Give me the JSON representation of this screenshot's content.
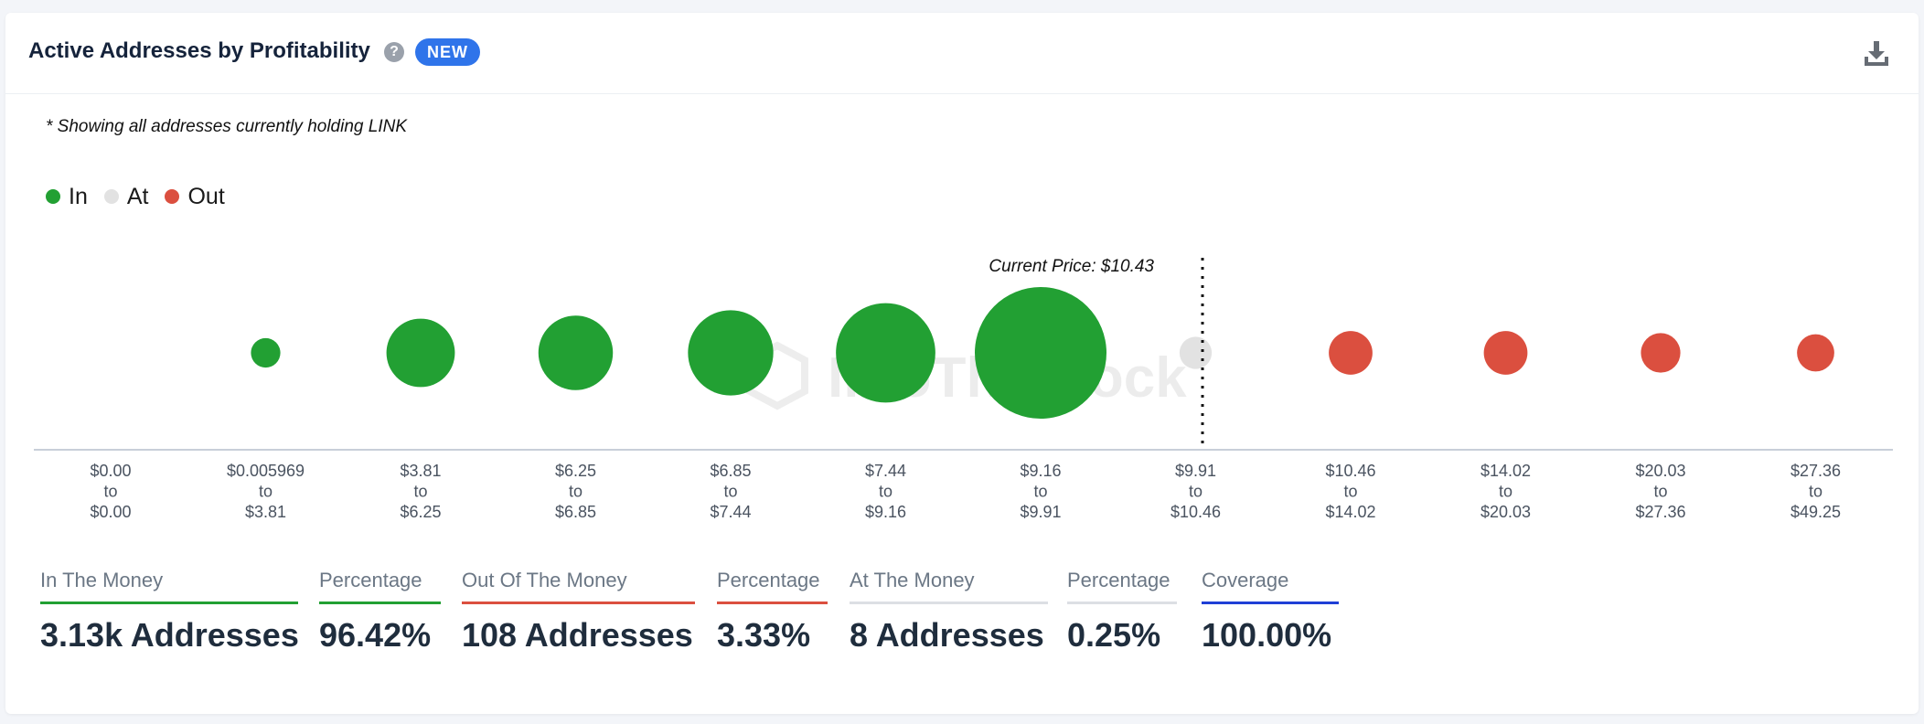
{
  "header": {
    "title": "Active Addresses by Profitability",
    "help_icon": "question-circle-icon",
    "badge": "NEW",
    "download_icon": "download-icon"
  },
  "note": "* Showing all addresses currently holding LINK",
  "watermark": "IntoTheBlock",
  "colors": {
    "in": "#22a033",
    "at": "#e2e2e2",
    "out": "#db4f3f",
    "coverage": "#1f3fd6",
    "badge": "#2f74ea"
  },
  "chart_data": {
    "type": "bubble",
    "legend": [
      {
        "key": "in",
        "label": "In",
        "color": "#22a033"
      },
      {
        "key": "at",
        "label": "At",
        "color": "#e2e2e2"
      },
      {
        "key": "out",
        "label": "Out",
        "color": "#db4f3f"
      }
    ],
    "current_price_label": "Current Price: $10.43",
    "current_price": 10.43,
    "buckets": [
      {
        "from": "$0.00",
        "to": "$0.00",
        "status": "in",
        "size": 0
      },
      {
        "from": "$0.005969",
        "to": "$3.81",
        "status": "in",
        "size": 0.05
      },
      {
        "from": "$3.81",
        "to": "$6.25",
        "status": "in",
        "size": 0.27
      },
      {
        "from": "$6.25",
        "to": "$6.85",
        "status": "in",
        "size": 0.32
      },
      {
        "from": "$6.85",
        "to": "$7.44",
        "status": "in",
        "size": 0.42
      },
      {
        "from": "$7.44",
        "to": "$9.16",
        "status": "in",
        "size": 0.57
      },
      {
        "from": "$9.16",
        "to": "$9.91",
        "status": "in",
        "size": 1.0
      },
      {
        "from": "$9.91",
        "to": "$10.46",
        "status": "at",
        "size": 0.06
      },
      {
        "from": "$10.46",
        "to": "$14.02",
        "status": "out",
        "size": 0.11
      },
      {
        "from": "$14.02",
        "to": "$20.03",
        "status": "out",
        "size": 0.11
      },
      {
        "from": "$20.03",
        "to": "$27.36",
        "status": "out",
        "size": 0.09
      },
      {
        "from": "$27.36",
        "to": "$49.25",
        "status": "out",
        "size": 0.08
      }
    ],
    "tick_connector": "to"
  },
  "stats": [
    {
      "label": "In The Money",
      "value": "3.13k Addresses",
      "color": "#22a033"
    },
    {
      "label": "Percentage",
      "value": "96.42%",
      "color": "#22a033"
    },
    {
      "label": "Out Of The Money",
      "value": "108 Addresses",
      "color": "#db4f3f"
    },
    {
      "label": "Percentage",
      "value": "3.33%",
      "color": "#db4f3f"
    },
    {
      "label": "At The Money",
      "value": "8 Addresses",
      "color": "#dcdfe4"
    },
    {
      "label": "Percentage",
      "value": "0.25%",
      "color": "#dcdfe4"
    },
    {
      "label": "Coverage",
      "value": "100.00%",
      "color": "#1f3fd6"
    }
  ]
}
